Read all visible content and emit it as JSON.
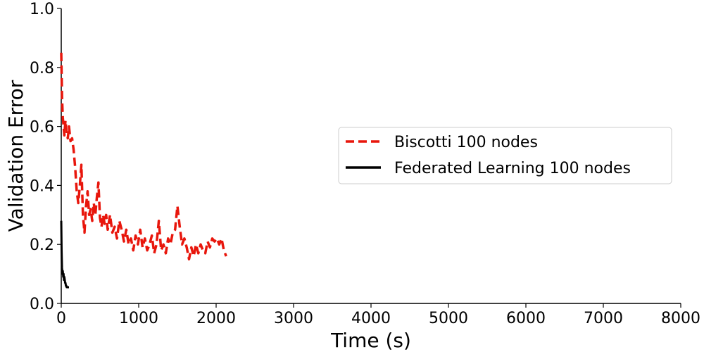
{
  "chart_data": {
    "type": "line",
    "xlabel": "Time (s)",
    "ylabel": "Validation Error",
    "xlim": [
      0,
      8000
    ],
    "ylim": [
      0.0,
      1.0
    ],
    "xticks": [
      0,
      1000,
      2000,
      3000,
      4000,
      5000,
      6000,
      7000,
      8000
    ],
    "yticks": [
      0.0,
      0.2,
      0.4,
      0.6,
      0.8,
      1.0
    ],
    "xtick_labels": [
      "0",
      "1000",
      "2000",
      "3000",
      "4000",
      "5000",
      "6000",
      "7000",
      "8000"
    ],
    "ytick_labels": [
      "0.0",
      "0.2",
      "0.4",
      "0.6",
      "0.8",
      "1.0"
    ],
    "grid": false,
    "legend_position": "center-right",
    "series": [
      {
        "name": "Biscotti 100 nodes",
        "color": "#e8160c",
        "style": "dashed",
        "x": [
          0,
          10,
          20,
          30,
          40,
          55,
          70,
          85,
          100,
          120,
          140,
          160,
          180,
          200,
          220,
          240,
          260,
          280,
          300,
          320,
          340,
          360,
          380,
          400,
          420,
          440,
          460,
          480,
          500,
          520,
          540,
          560,
          580,
          600,
          630,
          660,
          690,
          720,
          750,
          780,
          810,
          840,
          870,
          900,
          930,
          960,
          990,
          1020,
          1050,
          1080,
          1110,
          1140,
          1170,
          1200,
          1230,
          1260,
          1290,
          1320,
          1350,
          1380,
          1410,
          1440,
          1470,
          1500,
          1530,
          1560,
          1590,
          1620,
          1650,
          1680,
          1710,
          1740,
          1770,
          1800,
          1830,
          1860,
          1890,
          1920,
          1950,
          1980,
          2010,
          2040,
          2070,
          2100,
          2130
        ],
        "y": [
          0.85,
          0.7,
          0.63,
          0.6,
          0.57,
          0.62,
          0.58,
          0.56,
          0.6,
          0.55,
          0.56,
          0.52,
          0.46,
          0.38,
          0.34,
          0.4,
          0.47,
          0.3,
          0.24,
          0.33,
          0.38,
          0.3,
          0.32,
          0.28,
          0.34,
          0.3,
          0.36,
          0.41,
          0.29,
          0.26,
          0.3,
          0.27,
          0.3,
          0.25,
          0.3,
          0.24,
          0.26,
          0.22,
          0.28,
          0.25,
          0.21,
          0.25,
          0.2,
          0.22,
          0.18,
          0.23,
          0.2,
          0.25,
          0.19,
          0.22,
          0.18,
          0.2,
          0.23,
          0.17,
          0.2,
          0.28,
          0.18,
          0.2,
          0.17,
          0.22,
          0.2,
          0.24,
          0.25,
          0.33,
          0.26,
          0.2,
          0.22,
          0.19,
          0.15,
          0.19,
          0.16,
          0.2,
          0.17,
          0.2,
          0.18,
          0.17,
          0.21,
          0.19,
          0.22,
          0.21,
          0.22,
          0.2,
          0.22,
          0.18,
          0.16
        ]
      },
      {
        "name": "Federated Learning 100 nodes",
        "color": "#000000",
        "style": "solid",
        "x": [
          0,
          5,
          10,
          15,
          20,
          25,
          30,
          35,
          40,
          45,
          50,
          55,
          60,
          65,
          70,
          80,
          90,
          100
        ],
        "y": [
          0.28,
          0.18,
          0.12,
          0.1,
          0.11,
          0.09,
          0.1,
          0.08,
          0.09,
          0.08,
          0.07,
          0.07,
          0.06,
          0.06,
          0.055,
          0.055,
          0.055,
          0.055
        ]
      }
    ]
  }
}
